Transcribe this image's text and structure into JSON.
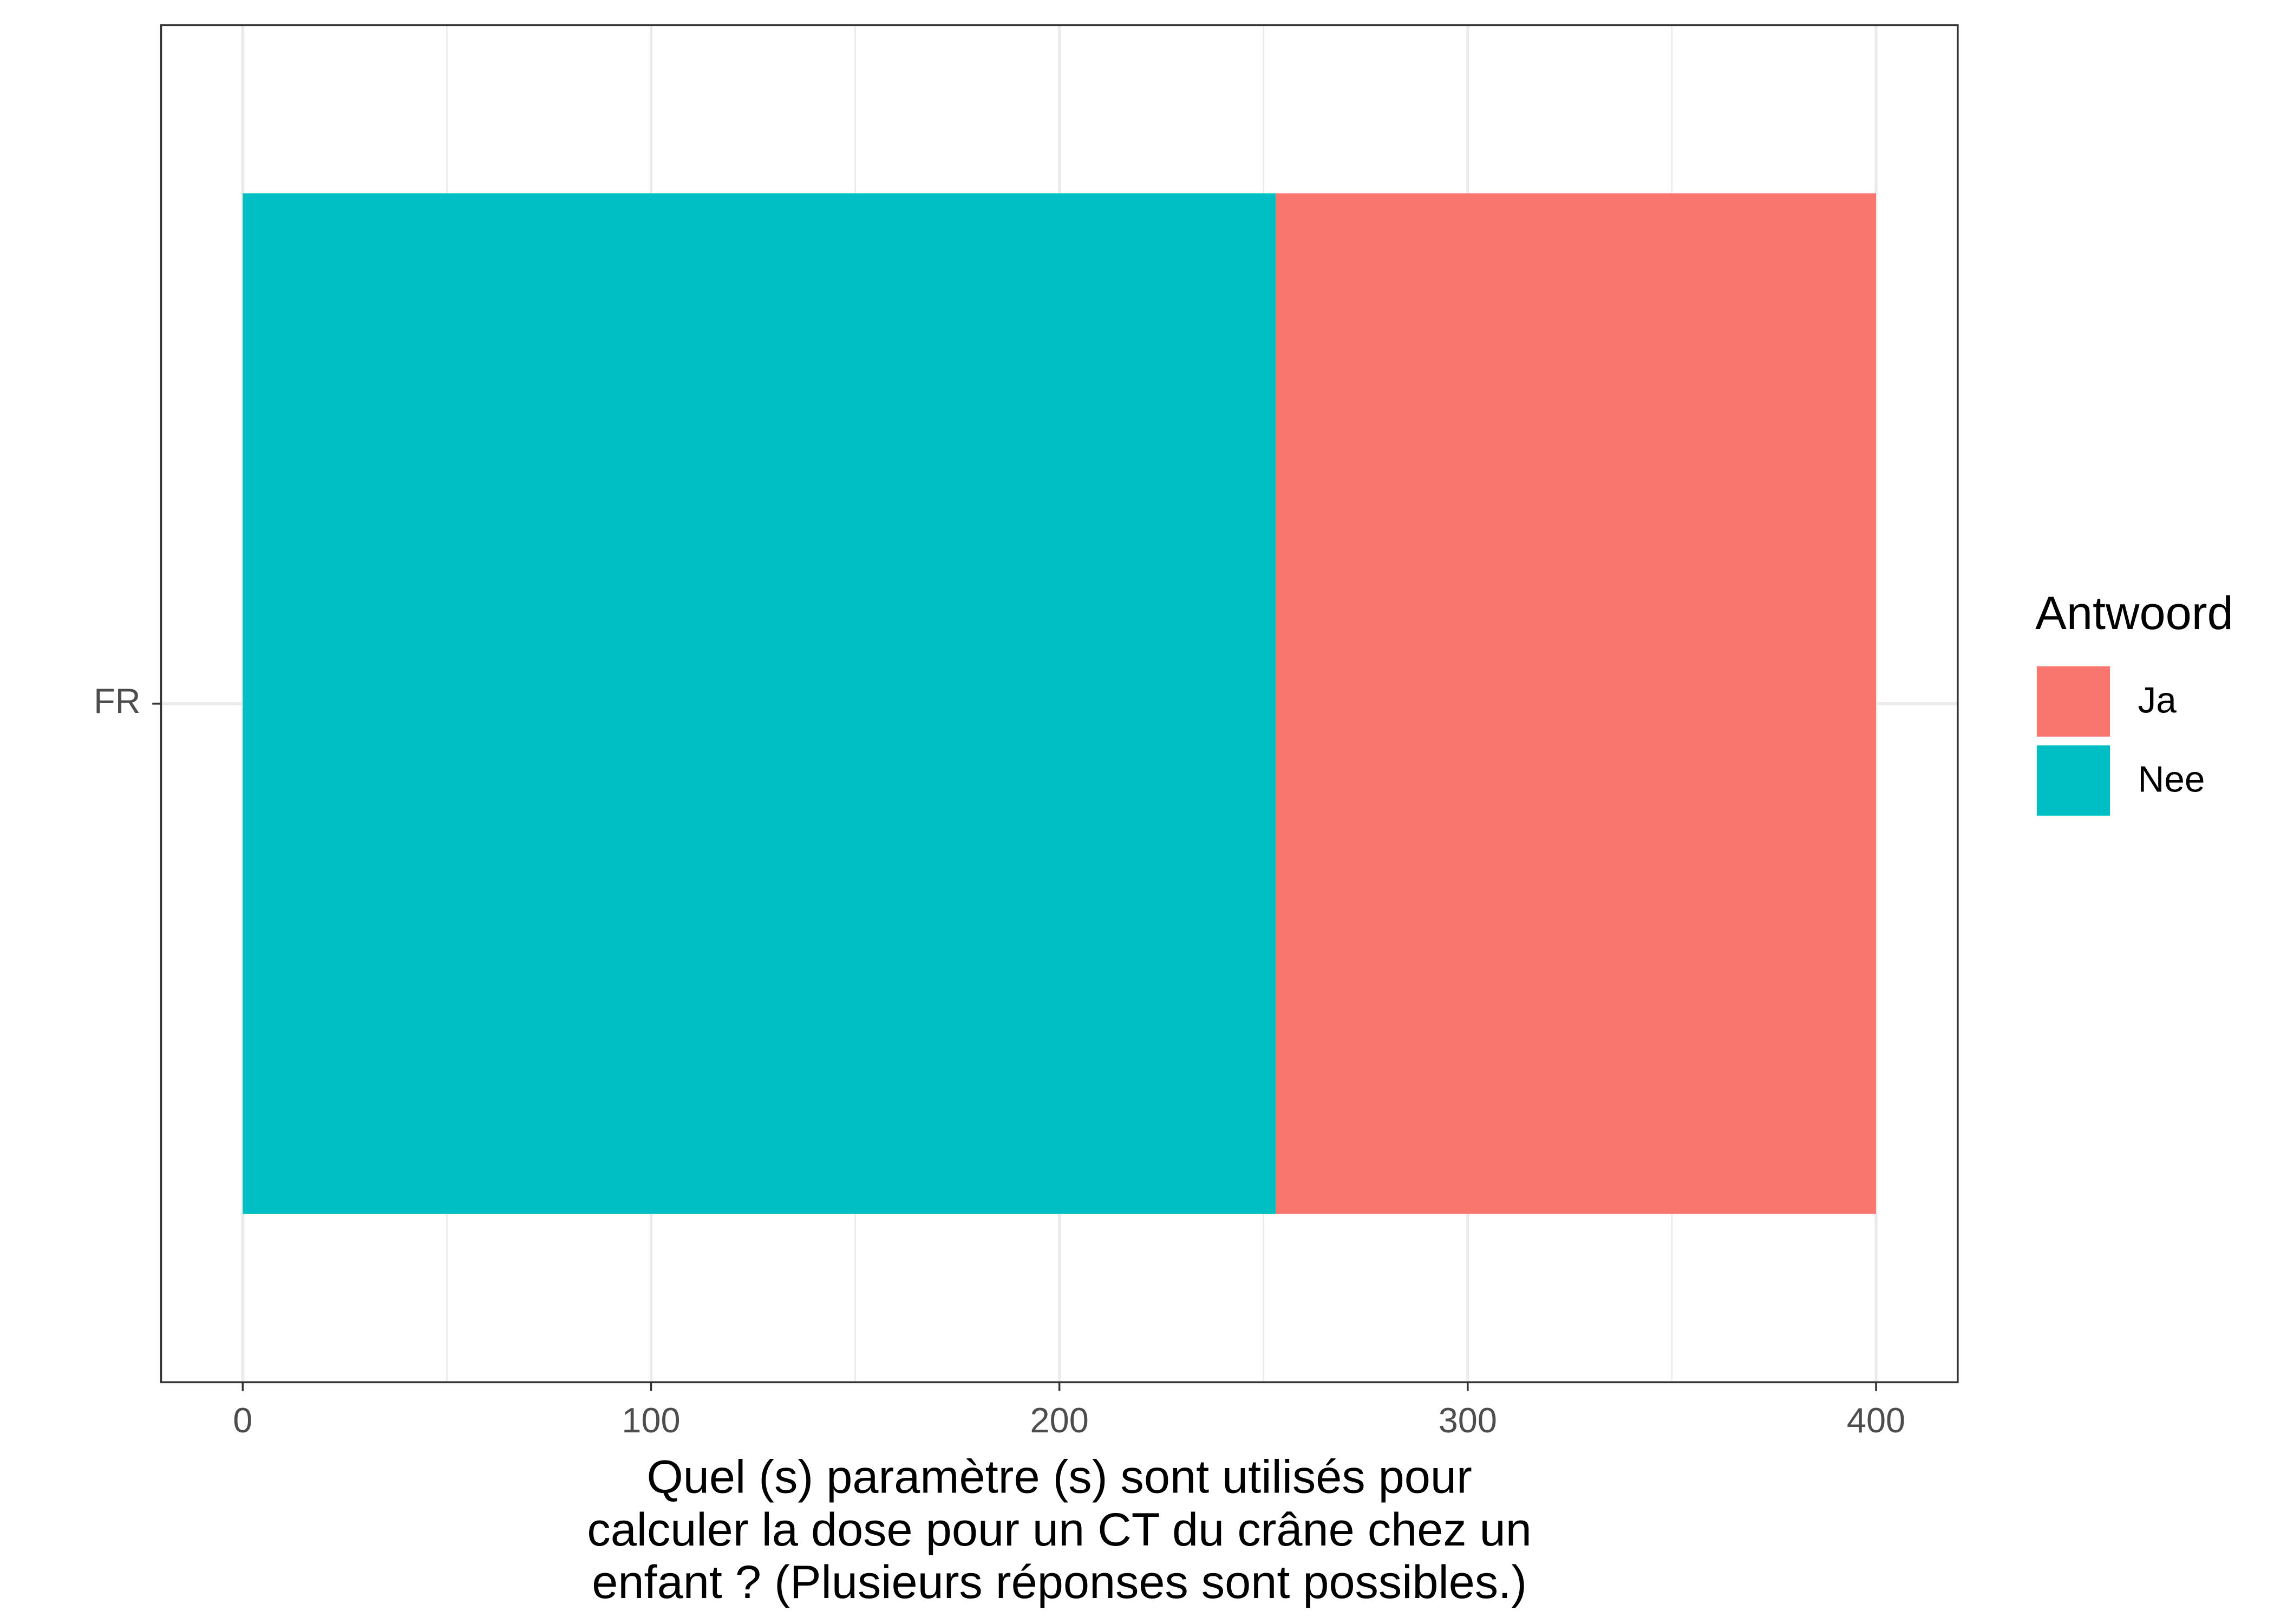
{
  "chart_data": {
    "type": "stacked_barh",
    "categories": [
      "FR"
    ],
    "series": [
      {
        "name": "Ja",
        "color": "#f8766d",
        "values": [
          147
        ]
      },
      {
        "name": "Nee",
        "color": "#00bfc4",
        "values": [
          253
        ]
      }
    ],
    "xlim": [
      -20,
      420
    ],
    "xticks": [
      0,
      100,
      200,
      300,
      400
    ],
    "x_minor_ticks": [
      50,
      150,
      250,
      350
    ],
    "grid": true,
    "xlabel": [
      "Quel (s) paramètre (s) sont utilisés pour",
      "calculer la dose pour un CT du crâne chez un",
      "enfant ? (Plusieurs réponses sont possibles.)"
    ],
    "legend_title": "Antwoord",
    "legend_position": "right"
  }
}
